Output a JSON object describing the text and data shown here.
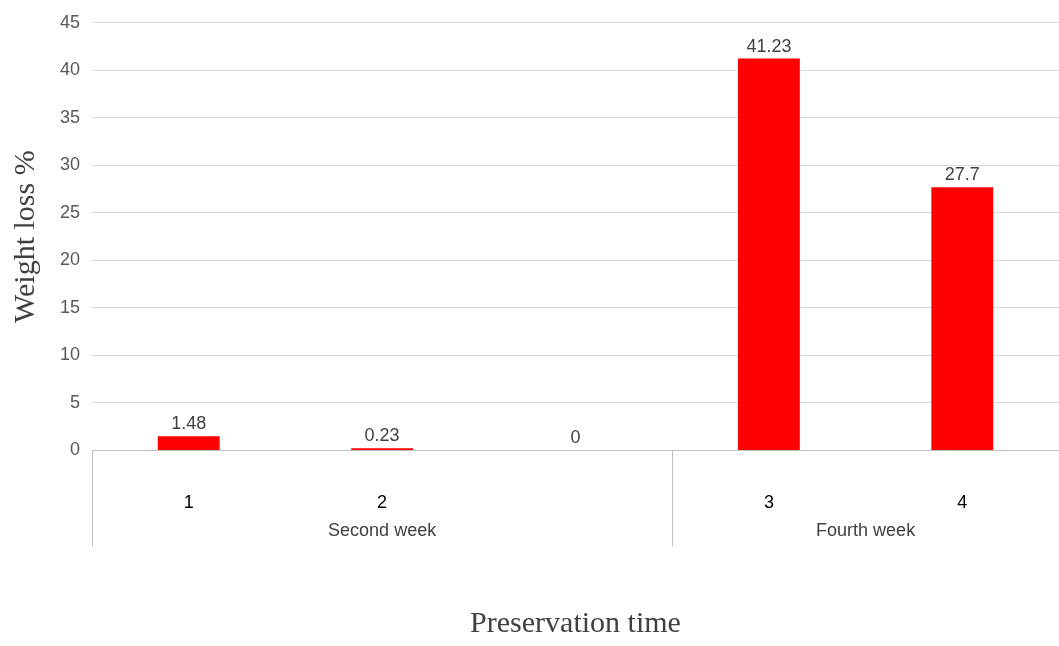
{
  "chart_data": {
    "type": "bar",
    "xlabel": "Preservation time",
    "ylabel": "Weight loss %",
    "categories": [
      "1",
      "2",
      null,
      "3",
      "4"
    ],
    "values": [
      1.48,
      0.23,
      0,
      41.23,
      27.7
    ],
    "color": "#ff0000",
    "ylim": [
      0,
      45
    ],
    "yticks": [
      0,
      5,
      10,
      15,
      20,
      25,
      30,
      35,
      40,
      45
    ],
    "grid": "y",
    "legend": false,
    "data_labels": true,
    "annotations": [
      "Second week",
      "Fourth week"
    ]
  }
}
